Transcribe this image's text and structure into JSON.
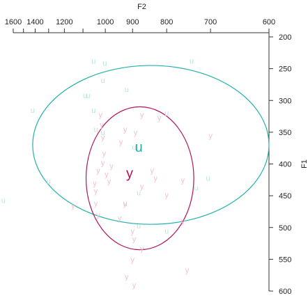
{
  "chart_data": {
    "type": "scatter",
    "x_axis": {
      "label": "F2",
      "reversed": true,
      "position": "top",
      "ticks": [
        1600,
        1400,
        1200,
        1000,
        900,
        800,
        700,
        600
      ],
      "scale": "reciprocal"
    },
    "y_axis": {
      "label": "F1",
      "reversed": true,
      "position": "right",
      "ticks": [
        200,
        250,
        300,
        350,
        400,
        450,
        500,
        550,
        600
      ],
      "scale": "linear"
    },
    "grid": false,
    "legend": "none",
    "series": [
      {
        "name": "u",
        "color": "#20B2AA",
        "token_color": "#B7E4E0",
        "centroid": {
          "label": "u",
          "x": 880,
          "y": 373
        },
        "ellipse": {
          "x_min": 600,
          "x_max": 1420,
          "y_min": 245,
          "y_max": 495
        },
        "points": [
          {
            "x": 1050,
            "y": 238
          },
          {
            "x": 1002,
            "y": 241
          },
          {
            "x": 740,
            "y": 237
          },
          {
            "x": 1010,
            "y": 268
          },
          {
            "x": 1090,
            "y": 292
          },
          {
            "x": 1075,
            "y": 292
          },
          {
            "x": 920,
            "y": 282
          },
          {
            "x": 1420,
            "y": 315
          },
          {
            "x": 1050,
            "y": 315
          },
          {
            "x": 800,
            "y": 320
          },
          {
            "x": 1040,
            "y": 345
          },
          {
            "x": 1010,
            "y": 350
          },
          {
            "x": 895,
            "y": 373
          },
          {
            "x": 1300,
            "y": 427
          },
          {
            "x": 1710,
            "y": 457
          },
          {
            "x": 880,
            "y": 445
          },
          {
            "x": 730,
            "y": 437
          },
          {
            "x": 705,
            "y": 422
          },
          {
            "x": 925,
            "y": 462
          },
          {
            "x": 880,
            "y": 497
          },
          {
            "x": 800,
            "y": 505
          }
        ]
      },
      {
        "name": "y",
        "color": "#B0125E",
        "token_color": "#F0C0D6",
        "centroid": {
          "label": "y",
          "x": 910,
          "y": 414
        },
        "ellipse": {
          "x_min": 735,
          "x_max": 1085,
          "y_min": 310,
          "y_max": 535
        },
        "points": [
          {
            "x": 1020,
            "y": 322
          },
          {
            "x": 870,
            "y": 322
          },
          {
            "x": 820,
            "y": 327
          },
          {
            "x": 1015,
            "y": 338
          },
          {
            "x": 925,
            "y": 345
          },
          {
            "x": 890,
            "y": 350
          },
          {
            "x": 700,
            "y": 355
          },
          {
            "x": 1010,
            "y": 358
          },
          {
            "x": 940,
            "y": 365
          },
          {
            "x": 1005,
            "y": 383
          },
          {
            "x": 1010,
            "y": 398
          },
          {
            "x": 975,
            "y": 403
          },
          {
            "x": 840,
            "y": 410
          },
          {
            "x": 1030,
            "y": 410
          },
          {
            "x": 995,
            "y": 416
          },
          {
            "x": 985,
            "y": 427
          },
          {
            "x": 830,
            "y": 422
          },
          {
            "x": 760,
            "y": 425
          },
          {
            "x": 1045,
            "y": 430
          },
          {
            "x": 1040,
            "y": 442
          },
          {
            "x": 870,
            "y": 435
          },
          {
            "x": 800,
            "y": 448
          },
          {
            "x": 1040,
            "y": 462
          },
          {
            "x": 925,
            "y": 462
          },
          {
            "x": 1150,
            "y": 465
          },
          {
            "x": 1030,
            "y": 480
          },
          {
            "x": 945,
            "y": 485
          },
          {
            "x": 760,
            "y": 490
          },
          {
            "x": 900,
            "y": 505
          },
          {
            "x": 895,
            "y": 518
          },
          {
            "x": 870,
            "y": 533
          },
          {
            "x": 900,
            "y": 550
          },
          {
            "x": 750,
            "y": 567
          },
          {
            "x": 920,
            "y": 577
          },
          {
            "x": 895,
            "y": 590
          }
        ]
      }
    ]
  }
}
